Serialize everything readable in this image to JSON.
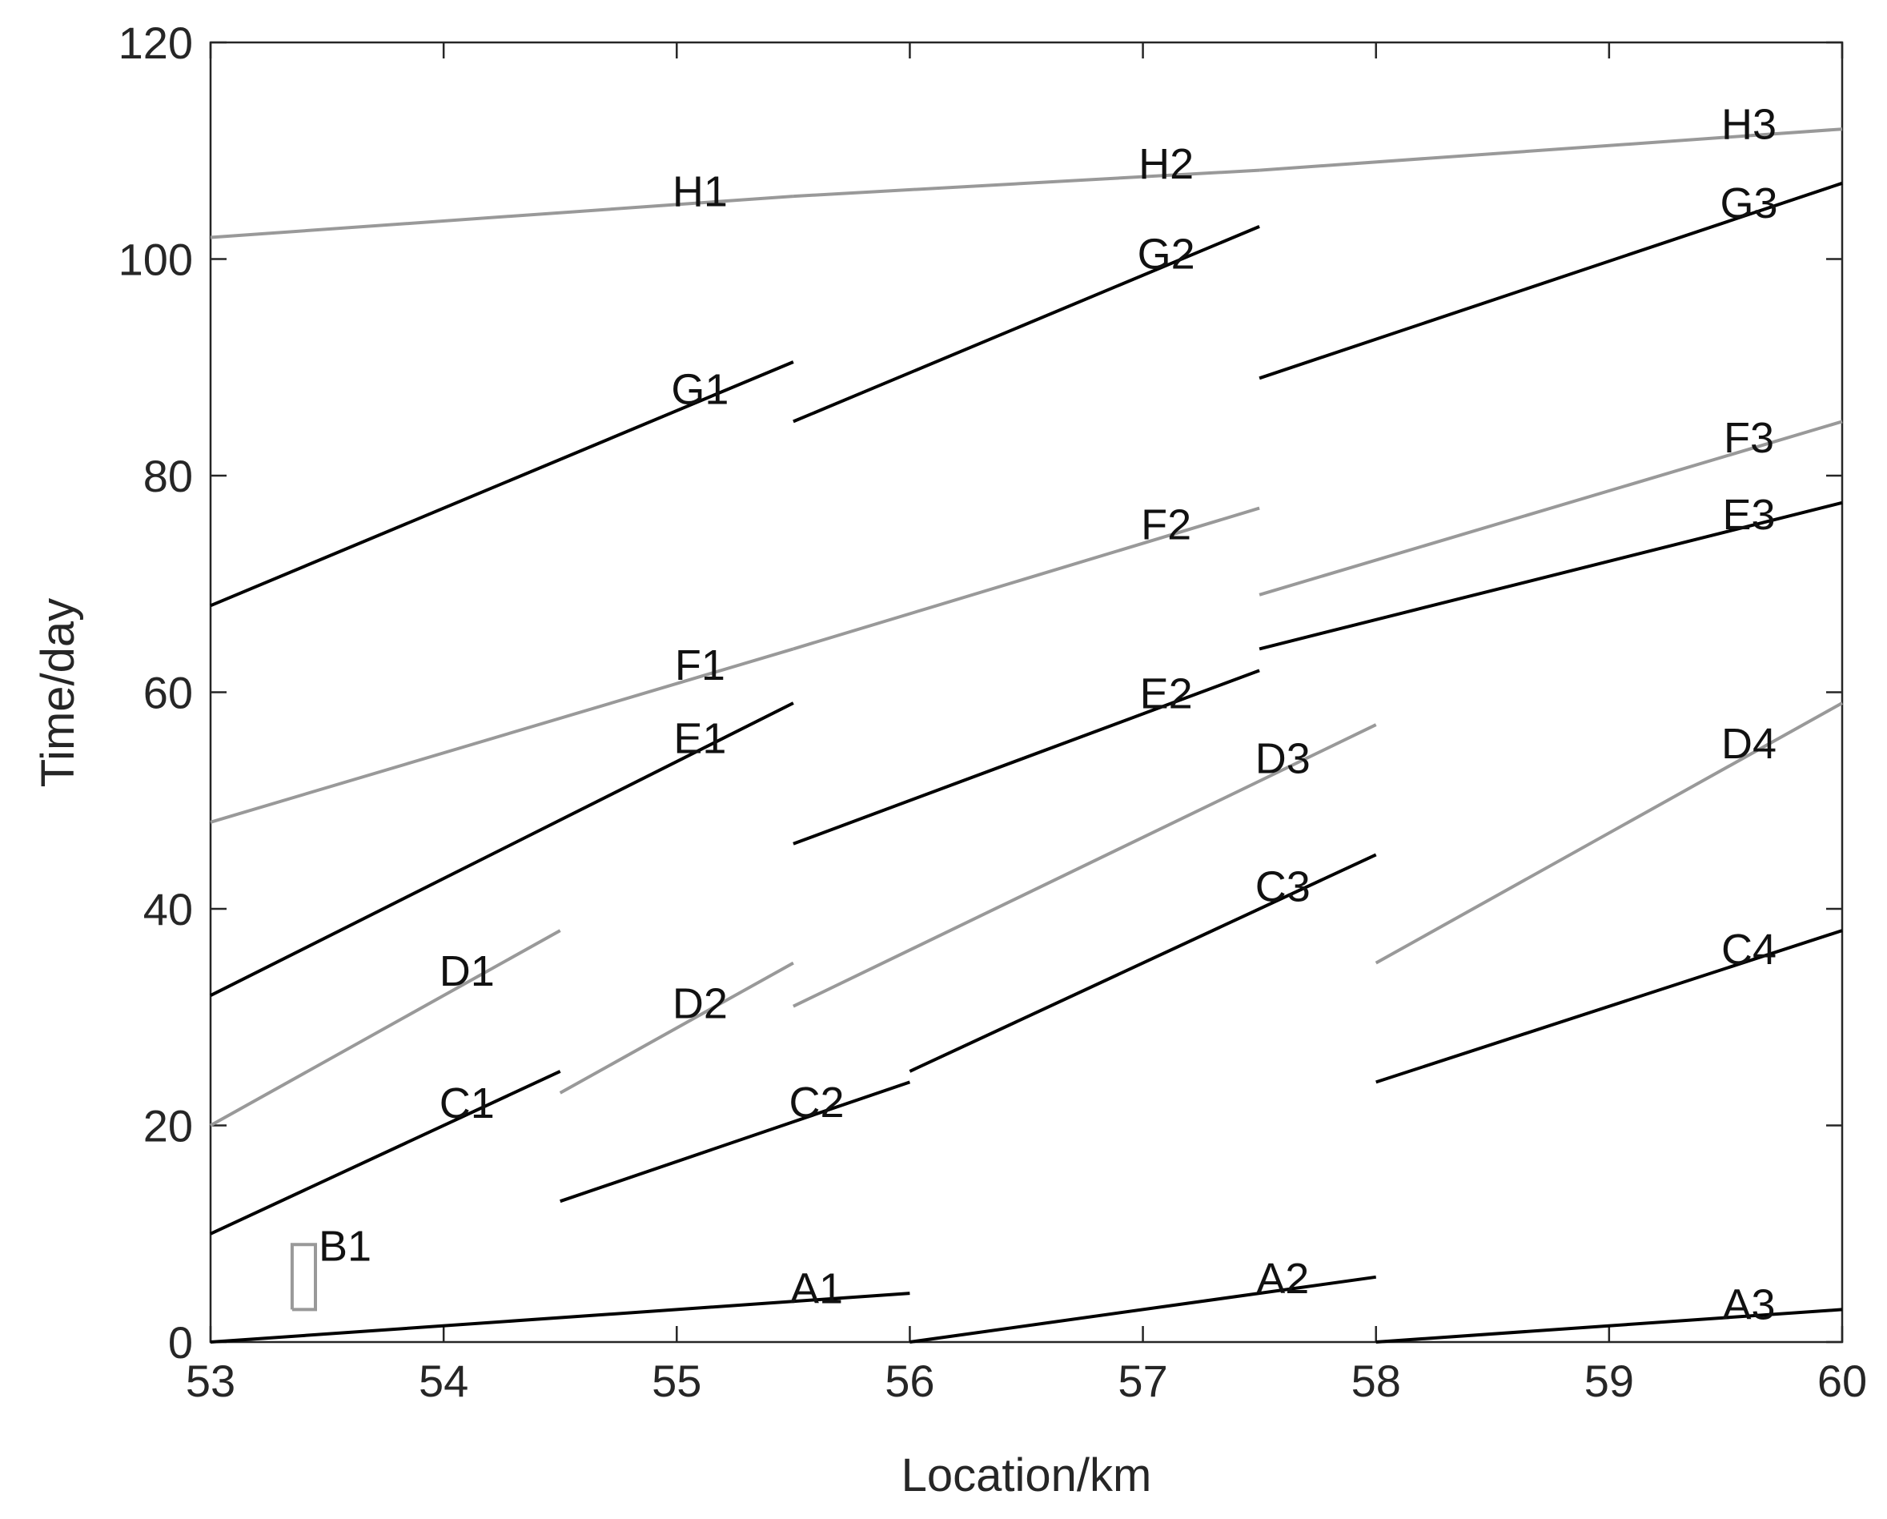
{
  "chart_data": {
    "type": "line",
    "xlabel": "Location/km",
    "ylabel": "Time/day",
    "xlim": [
      53,
      60
    ],
    "xticks": [
      53,
      54,
      55,
      56,
      57,
      58,
      59,
      60
    ],
    "ylim": [
      0,
      120
    ],
    "yticks": [
      0,
      20,
      40,
      60,
      80,
      100,
      120
    ],
    "grid": false,
    "series": [
      {
        "name": "A1",
        "color": "#000000",
        "x": [
          53,
          56
        ],
        "values": [
          0,
          4.5
        ]
      },
      {
        "name": "A2",
        "color": "#000000",
        "x": [
          56,
          58
        ],
        "values": [
          0,
          6
        ]
      },
      {
        "name": "A3",
        "color": "#000000",
        "x": [
          58,
          60
        ],
        "values": [
          0,
          3
        ]
      },
      {
        "name": "B1",
        "color": "#999999",
        "x": [
          53.35,
          53.45,
          53.45,
          53.35,
          53.35
        ],
        "values": [
          3,
          3,
          9,
          9,
          3
        ]
      },
      {
        "name": "C1",
        "color": "#000000",
        "x": [
          53,
          54.5
        ],
        "values": [
          10,
          25
        ]
      },
      {
        "name": "C2",
        "color": "#000000",
        "x": [
          54.5,
          56
        ],
        "values": [
          13,
          24
        ]
      },
      {
        "name": "C3",
        "color": "#000000",
        "x": [
          56,
          58
        ],
        "values": [
          25,
          45
        ]
      },
      {
        "name": "C4",
        "color": "#000000",
        "x": [
          58,
          60
        ],
        "values": [
          24,
          38
        ]
      },
      {
        "name": "D1",
        "color": "#999999",
        "x": [
          53,
          54.5
        ],
        "values": [
          20,
          38
        ]
      },
      {
        "name": "D2",
        "color": "#999999",
        "x": [
          54.5,
          55.5
        ],
        "values": [
          23,
          35
        ]
      },
      {
        "name": "D3",
        "color": "#999999",
        "x": [
          55.5,
          58
        ],
        "values": [
          31,
          57
        ]
      },
      {
        "name": "D4",
        "color": "#999999",
        "x": [
          58,
          60
        ],
        "values": [
          35,
          59
        ]
      },
      {
        "name": "E1",
        "color": "#000000",
        "x": [
          53,
          55.5
        ],
        "values": [
          32,
          59
        ]
      },
      {
        "name": "E2",
        "color": "#000000",
        "x": [
          55.5,
          57.5
        ],
        "values": [
          46,
          62
        ]
      },
      {
        "name": "E3",
        "color": "#000000",
        "x": [
          57.5,
          60
        ],
        "values": [
          64,
          77.5
        ]
      },
      {
        "name": "F1",
        "color": "#999999",
        "x": [
          53,
          55.5
        ],
        "values": [
          48,
          64
        ]
      },
      {
        "name": "F2",
        "color": "#999999",
        "x": [
          55.5,
          57.5
        ],
        "values": [
          64,
          77
        ]
      },
      {
        "name": "F3",
        "color": "#999999",
        "x": [
          57.5,
          60
        ],
        "values": [
          69,
          85
        ]
      },
      {
        "name": "G1",
        "color": "#000000",
        "x": [
          53,
          55.5
        ],
        "values": [
          68,
          90.5
        ]
      },
      {
        "name": "G2",
        "color": "#000000",
        "x": [
          55.5,
          57.5
        ],
        "values": [
          85,
          103
        ]
      },
      {
        "name": "G3",
        "color": "#000000",
        "x": [
          57.5,
          60
        ],
        "values": [
          89,
          107
        ]
      },
      {
        "name": "H1",
        "color": "#999999",
        "x": [
          53,
          55.5
        ],
        "values": [
          102,
          105.8
        ]
      },
      {
        "name": "H2",
        "color": "#999999",
        "x": [
          55.5,
          57.5
        ],
        "values": [
          105.8,
          108.2
        ]
      },
      {
        "name": "H3",
        "color": "#999999",
        "x": [
          57.5,
          60
        ],
        "values": [
          108.2,
          112
        ]
      }
    ]
  }
}
